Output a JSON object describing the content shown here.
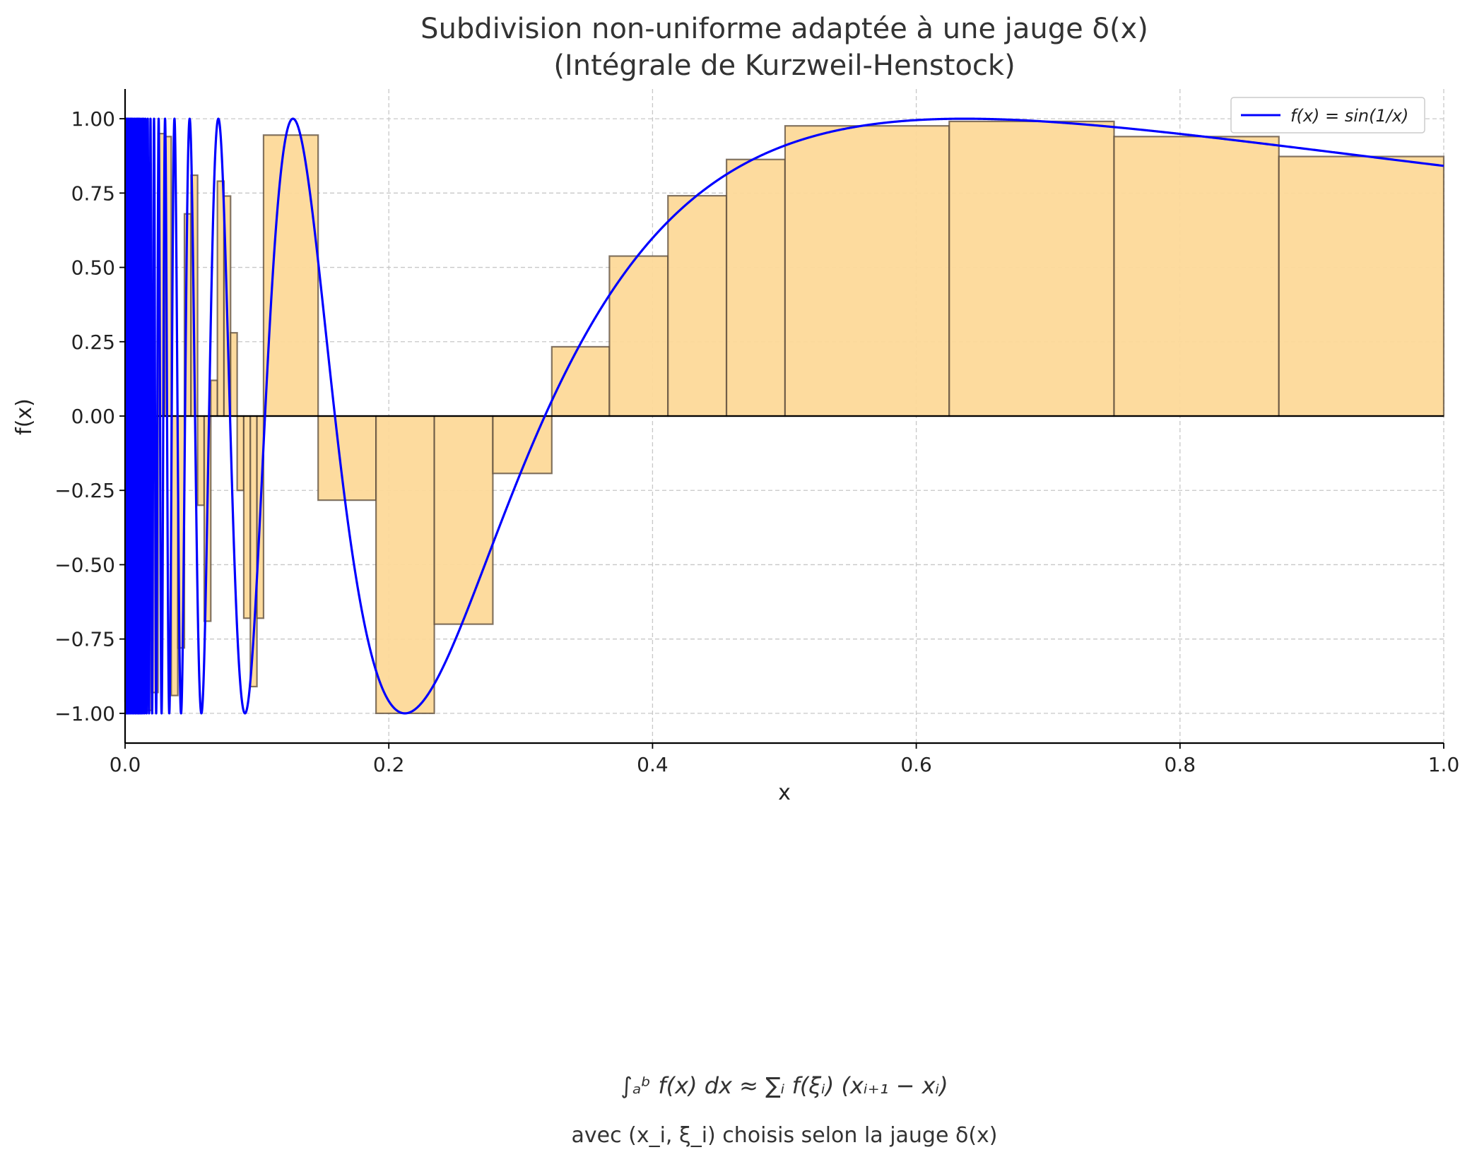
{
  "chart_data": {
    "type": "line",
    "title_line1": "Subdivision non-uniforme adaptée à une jauge δ(x)",
    "title_line2": "(Intégrale de Kurzweil-Henstock)",
    "xlabel": "x",
    "ylabel": "f(x)",
    "xlim": [
      0,
      1
    ],
    "ylim": [
      -1.1,
      1.1
    ],
    "xticks": [
      0.0,
      0.2,
      0.4,
      0.6,
      0.8,
      1.0
    ],
    "xtick_labels": [
      "0.0",
      "0.2",
      "0.4",
      "0.6",
      "0.8",
      "1.0"
    ],
    "yticks": [
      1.0,
      0.75,
      0.5,
      0.25,
      0.0,
      -0.25,
      -0.5,
      -0.75,
      -1.0
    ],
    "ytick_labels": [
      "1.00",
      "0.75",
      "0.50",
      "0.25",
      "0.00",
      "−0.25",
      "−0.50",
      "−0.75",
      "−1.00"
    ],
    "grid": true,
    "legend_position": "top-right",
    "series": [
      {
        "name": "f(x) = sin(1/x)",
        "color": "#0000ff",
        "function": "sin(1/x)",
        "x_range": [
          0.001,
          1
        ]
      }
    ],
    "bar_color": "#fdd999",
    "bar_edge_color": "#5a4a3a",
    "riemann_bars": [
      {
        "x0": 0.0,
        "x1": 0.011,
        "h": -0.96
      },
      {
        "x0": 0.011,
        "x1": 0.015,
        "h": -0.62
      },
      {
        "x0": 0.015,
        "x1": 0.02,
        "h": -0.99
      },
      {
        "x0": 0.02,
        "x1": 0.025,
        "h": -0.93
      },
      {
        "x0": 0.025,
        "x1": 0.03,
        "h": 0.95
      },
      {
        "x0": 0.03,
        "x1": 0.035,
        "h": 0.94
      },
      {
        "x0": 0.035,
        "x1": 0.04,
        "h": -0.94
      },
      {
        "x0": 0.04,
        "x1": 0.045,
        "h": -0.78
      },
      {
        "x0": 0.045,
        "x1": 0.05,
        "h": 0.68
      },
      {
        "x0": 0.05,
        "x1": 0.055,
        "h": 0.81
      },
      {
        "x0": 0.055,
        "x1": 0.06,
        "h": -0.3
      },
      {
        "x0": 0.06,
        "x1": 0.065,
        "h": -0.69
      },
      {
        "x0": 0.065,
        "x1": 0.07,
        "h": 0.12
      },
      {
        "x0": 0.07,
        "x1": 0.075,
        "h": 0.79
      },
      {
        "x0": 0.075,
        "x1": 0.08,
        "h": 0.74
      },
      {
        "x0": 0.08,
        "x1": 0.085,
        "h": 0.28
      },
      {
        "x0": 0.085,
        "x1": 0.09,
        "h": -0.25
      },
      {
        "x0": 0.09,
        "x1": 0.095,
        "h": -0.68
      },
      {
        "x0": 0.095,
        "x1": 0.1,
        "h": -0.91
      },
      {
        "x0": 0.1,
        "x1": 0.105,
        "h": -0.68
      },
      {
        "x0": 0.105,
        "x1": 0.1464,
        "h": 0.945
      },
      {
        "x0": 0.1464,
        "x1": 0.1903,
        "h": -0.283
      },
      {
        "x0": 0.1903,
        "x1": 0.2345,
        "h": -1.0
      },
      {
        "x0": 0.2345,
        "x1": 0.2789,
        "h": -0.7
      },
      {
        "x0": 0.2789,
        "x1": 0.3236,
        "h": -0.193
      },
      {
        "x0": 0.3236,
        "x1": 0.3673,
        "h": 0.233
      },
      {
        "x0": 0.3673,
        "x1": 0.4117,
        "h": 0.538
      },
      {
        "x0": 0.4117,
        "x1": 0.4561,
        "h": 0.741
      },
      {
        "x0": 0.4561,
        "x1": 0.5005,
        "h": 0.863
      },
      {
        "x0": 0.5005,
        "x1": 0.625,
        "h": 0.976
      },
      {
        "x0": 0.625,
        "x1": 0.75,
        "h": 0.991
      },
      {
        "x0": 0.75,
        "x1": 0.875,
        "h": 0.94
      },
      {
        "x0": 0.875,
        "x1": 1.0,
        "h": 0.873
      }
    ],
    "annotation_formula": "∫ₐᵇ f(x) dx ≈ ∑ᵢ f(ξᵢ) (xᵢ₊₁ − xᵢ)",
    "annotation_subtitle": "avec (x_i, ξ_i) choisis selon la jauge δ(x)"
  }
}
